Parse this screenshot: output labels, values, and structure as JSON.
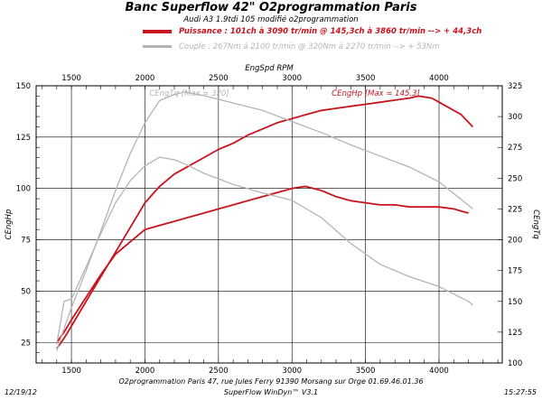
{
  "header": {
    "title": "Banc Superflow 42\" O2programmation Paris",
    "subtitle": "Audi A3 1.9tdi 105 modifié o2programmation"
  },
  "legend": [
    {
      "label": "Puissance : 101ch à 3090 tr/min @ 145,3ch à 3860 tr/min --> + 44,3ch",
      "color": "#c8141e"
    },
    {
      "label": "Couple : 267Nm à 2100 tr/min @ 320Nm à 2270 tr/min --> + 53Nm",
      "color": "#b4b4b4"
    }
  ],
  "footer": {
    "date": "12/19/12",
    "time": "15:27:55",
    "address": "O2programmation Paris 47, rue Jules Ferry 91390 Morsang sur Orge 01.69.46.01.36",
    "software": "SuperFlow WinDyn™ V3.1"
  },
  "chart_data": {
    "type": "line",
    "xlabel": "EngSpd RPM",
    "ylabel_left": "CEngHp",
    "ylabel_right": "CEngTq",
    "x_ticks": [
      1500,
      2000,
      2500,
      3000,
      3500,
      4000
    ],
    "y_left_ticks": [
      25,
      50,
      75,
      100,
      125,
      150
    ],
    "y_right_ticks": [
      100,
      125,
      150,
      175,
      200,
      225,
      250,
      275,
      300,
      325
    ],
    "xlim": [
      1260,
      4430
    ],
    "ylim_left": [
      15,
      150
    ],
    "ylim_right": [
      100,
      325
    ],
    "grid": true,
    "annotations": [
      {
        "text": "CEngTq [Max = 320]",
        "series": "torque_modified",
        "color": "#b4b4b4"
      },
      {
        "text": "CEngHp [Max = 145.3]",
        "series": "power_modified",
        "color": "#c8141e"
      }
    ],
    "series": [
      {
        "id": "power_modified",
        "axis": "left",
        "color": "#c8141e",
        "x": [
          1400,
          1450,
          1500,
          1600,
          1700,
          1800,
          1900,
          2000,
          2100,
          2200,
          2300,
          2400,
          2500,
          2600,
          2700,
          2800,
          2900,
          3000,
          3100,
          3200,
          3300,
          3400,
          3500,
          3600,
          3700,
          3800,
          3860,
          3950,
          4050,
          4150,
          4230
        ],
        "y": [
          22,
          27,
          33,
          45,
          57,
          69,
          81,
          93,
          101,
          107,
          111,
          115,
          119,
          122,
          126,
          129,
          132,
          134,
          136,
          138,
          139,
          140,
          141,
          142,
          143,
          144,
          145,
          144,
          140,
          136,
          130
        ]
      },
      {
        "id": "power_stock",
        "axis": "left",
        "color": "#c8141e",
        "x": [
          1400,
          1450,
          1500,
          1600,
          1700,
          1800,
          1900,
          2000,
          2100,
          2200,
          2300,
          2400,
          2500,
          2600,
          2700,
          2800,
          2900,
          3000,
          3090,
          3200,
          3300,
          3400,
          3500,
          3600,
          3700,
          3800,
          3900,
          4000,
          4100,
          4200
        ],
        "y": [
          25,
          30,
          36,
          47,
          58,
          68,
          74,
          80,
          82,
          84,
          86,
          88,
          90,
          92,
          94,
          96,
          98,
          100,
          101,
          99,
          96,
          94,
          93,
          92,
          92,
          91,
          91,
          91,
          90,
          88
        ]
      },
      {
        "id": "torque_modified",
        "axis": "right",
        "color": "#b4b4b4",
        "x": [
          1400,
          1450,
          1500,
          1600,
          1700,
          1800,
          1900,
          2000,
          2100,
          2200,
          2270,
          2400,
          2600,
          2800,
          3000,
          3200,
          3400,
          3600,
          3800,
          4000,
          4200,
          4230
        ],
        "y": [
          110,
          128,
          145,
          175,
          207,
          240,
          270,
          295,
          313,
          318,
          320,
          317,
          311,
          305,
          296,
          287,
          277,
          268,
          259,
          247,
          228,
          225
        ]
      },
      {
        "id": "torque_stock",
        "axis": "right",
        "color": "#b4b4b4",
        "x": [
          1400,
          1450,
          1500,
          1600,
          1700,
          1800,
          1900,
          2000,
          2100,
          2200,
          2300,
          2400,
          2600,
          2800,
          3000,
          3200,
          3400,
          3600,
          3800,
          4000,
          4200,
          4230
        ],
        "y": [
          115,
          150,
          152,
          178,
          205,
          230,
          248,
          260,
          267,
          265,
          260,
          254,
          245,
          238,
          232,
          218,
          197,
          180,
          170,
          162,
          150,
          147
        ]
      }
    ]
  }
}
